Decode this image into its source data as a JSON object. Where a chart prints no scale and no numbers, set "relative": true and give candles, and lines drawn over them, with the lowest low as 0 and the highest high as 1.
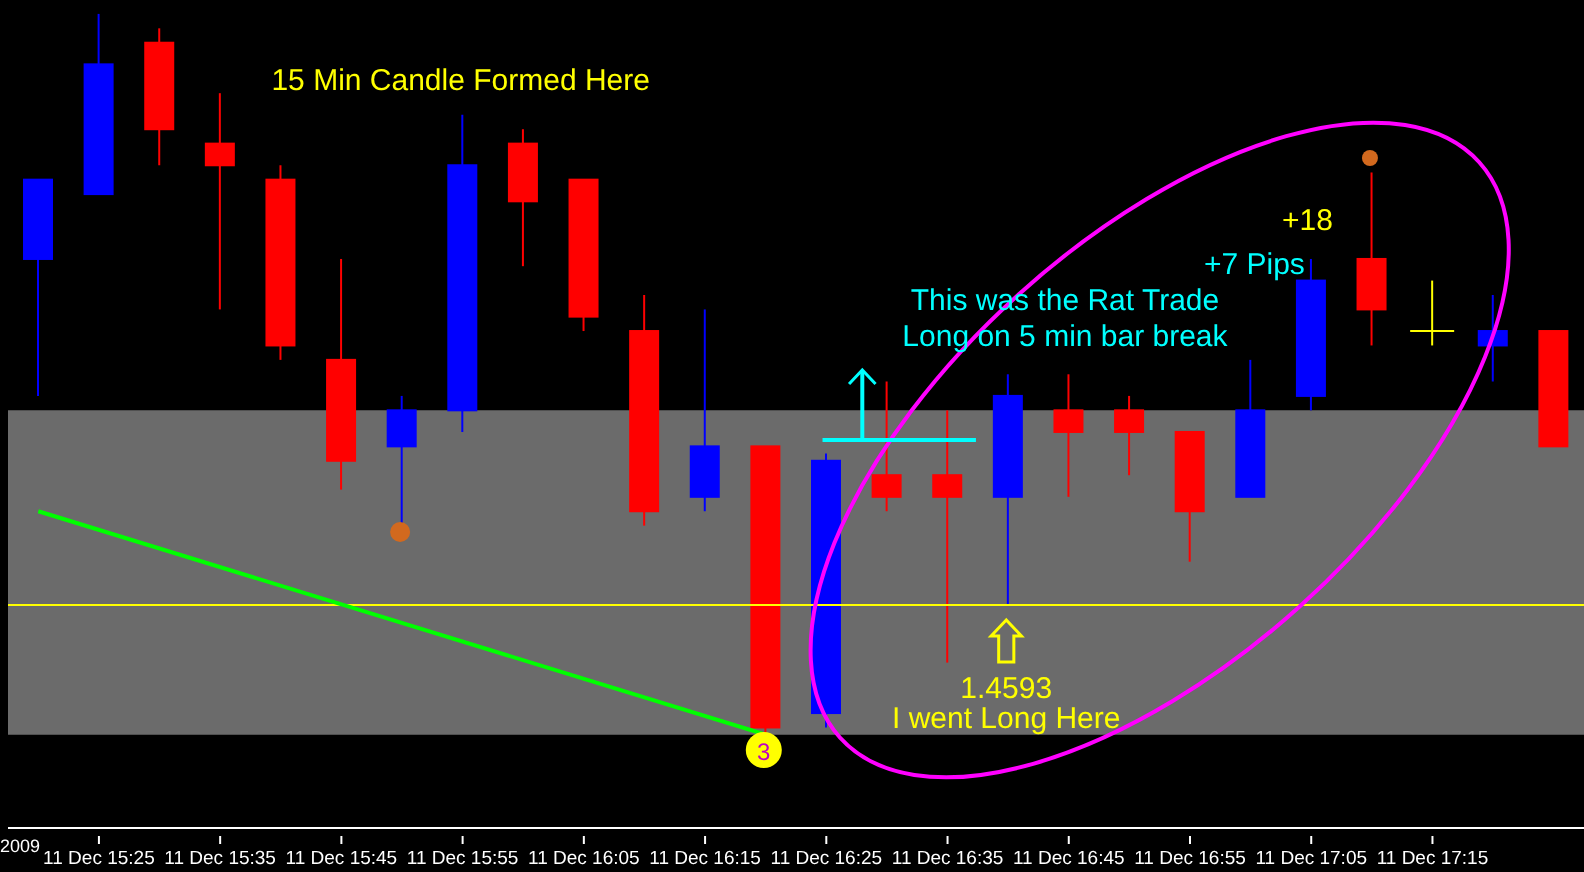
{
  "chart_data": {
    "type": "candlestick",
    "relative": true,
    "categories": [
      null,
      "11 Dec 15:25",
      null,
      "11 Dec 15:35",
      null,
      "11 Dec 15:45",
      null,
      "11 Dec 15:55",
      null,
      "11 Dec 16:05",
      null,
      "11 Dec 16:15",
      null,
      "11 Dec 16:25",
      null,
      "11 Dec 16:35",
      null,
      "11 Dec 16:45",
      null,
      "11 Dec 16:55",
      null,
      "11 Dec 17:05",
      null,
      "11 Dec 17:15",
      null,
      null
    ],
    "ohlc": [
      [
        0.66,
        0.77,
        0.47,
        0.77
      ],
      [
        0.75,
        1.0,
        0.75,
        0.93
      ],
      [
        0.96,
        0.98,
        0.79,
        0.84
      ],
      [
        0.82,
        0.89,
        0.59,
        0.79
      ],
      [
        0.77,
        0.79,
        0.52,
        0.54
      ],
      [
        0.52,
        0.66,
        0.34,
        0.38
      ],
      [
        0.4,
        0.47,
        0.29,
        0.45
      ],
      [
        0.45,
        0.86,
        0.42,
        0.79
      ],
      [
        0.82,
        0.84,
        0.65,
        0.74
      ],
      [
        0.77,
        0.77,
        0.56,
        0.58
      ],
      [
        0.56,
        0.61,
        0.29,
        0.31
      ],
      [
        0.33,
        0.59,
        0.31,
        0.4
      ],
      [
        0.4,
        0.4,
        0.0,
        0.01
      ],
      [
        0.03,
        0.39,
        0.01,
        0.38
      ],
      [
        0.36,
        0.49,
        0.31,
        0.33
      ],
      [
        0.36,
        0.45,
        0.1,
        0.33
      ],
      [
        0.33,
        0.5,
        0.18,
        0.47
      ],
      [
        0.45,
        0.5,
        0.33,
        0.42
      ],
      [
        0.45,
        0.47,
        0.36,
        0.42
      ],
      [
        0.42,
        0.42,
        0.24,
        0.31
      ],
      [
        0.33,
        0.52,
        0.33,
        0.45
      ],
      [
        0.47,
        0.66,
        0.45,
        0.63
      ],
      [
        0.66,
        0.78,
        0.54,
        0.59
      ],
      [
        0.56,
        0.63,
        0.54,
        0.56
      ],
      [
        0.54,
        0.61,
        0.49,
        0.56
      ],
      [
        0.56,
        0.56,
        0.4,
        0.4
      ]
    ],
    "colors": [
      "#0000ff",
      "#0000ff",
      "#ff0000",
      "#ff0000",
      "#ff0000",
      "#ff0000",
      "#0000ff",
      "#0000ff",
      "#ff0000",
      "#ff0000",
      "#ff0000",
      "#0000ff",
      "#ff0000",
      "#0000ff",
      "#ff0000",
      "#ff0000",
      "#0000ff",
      "#ff0000",
      "#ff0000",
      "#ff0000",
      "#0000ff",
      "#0000ff",
      "#ff0000",
      "#ffff00",
      "#0000ff",
      "#ff0000"
    ],
    "series": [
      {
        "type": "line",
        "color": "#00ff00",
        "values": [
          0.31,
          null,
          null,
          null,
          null,
          null,
          null,
          null,
          null,
          null,
          null,
          null,
          0.0,
          null,
          null,
          null,
          null,
          null,
          null,
          null,
          null,
          null,
          null,
          null,
          null,
          null
        ]
      }
    ],
    "bands": [
      {
        "axis": "y",
        "from": 0,
        "to": 0.45,
        "color": "#6b6b6b"
      }
    ],
    "ref_lines": [
      {
        "axis": "y",
        "value": 0.18,
        "color": "#ffff00"
      }
    ],
    "annotations": [
      "15 Min Candle Formed Here",
      "This was the Rat Trade",
      "Long on 5 min bar break",
      "+7 Pips",
      "+18",
      "1.4593",
      "I went Long Here",
      "3",
      "2009"
    ]
  }
}
